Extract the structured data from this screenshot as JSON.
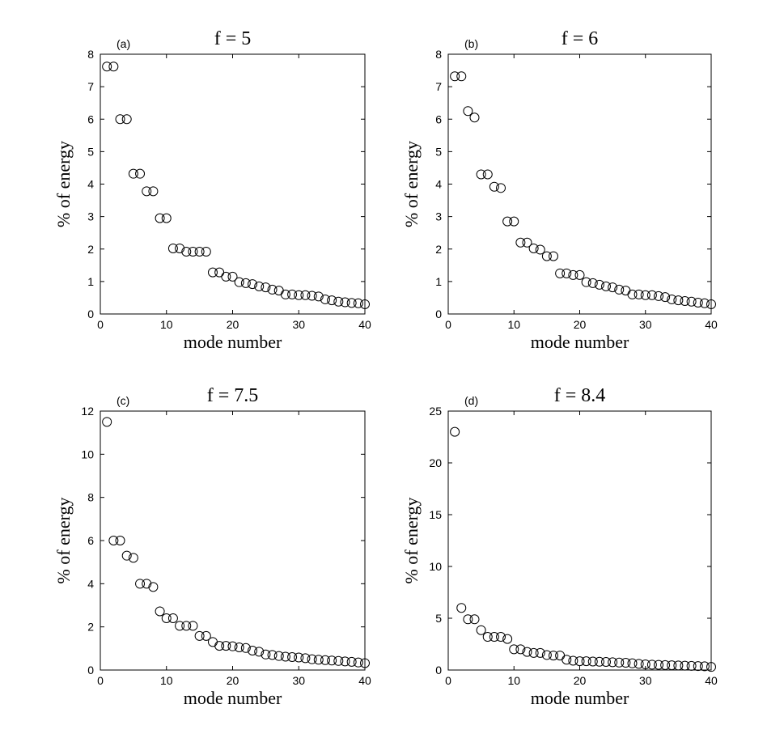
{
  "chart_data": [
    {
      "type": "scatter",
      "panel_label": "(a)",
      "title": "f = 5",
      "xlabel": "mode number",
      "ylabel": "% of energy",
      "xlim": [
        0,
        40
      ],
      "ylim": [
        0,
        8
      ],
      "xticks": [
        0,
        10,
        20,
        30,
        40
      ],
      "yticks": [
        0,
        1,
        2,
        3,
        4,
        5,
        6,
        7,
        8
      ],
      "grid": false,
      "marker": "open-circle",
      "x": [
        1,
        2,
        3,
        4,
        5,
        6,
        7,
        8,
        9,
        10,
        11,
        12,
        13,
        14,
        15,
        16,
        17,
        18,
        19,
        20,
        21,
        22,
        23,
        24,
        25,
        26,
        27,
        28,
        29,
        30,
        31,
        32,
        33,
        34,
        35,
        36,
        37,
        38,
        39,
        40
      ],
      "y": [
        7.62,
        7.62,
        6.0,
        6.0,
        4.32,
        4.32,
        3.78,
        3.78,
        2.95,
        2.95,
        2.02,
        2.02,
        1.92,
        1.92,
        1.92,
        1.92,
        1.28,
        1.28,
        1.15,
        1.15,
        0.98,
        0.95,
        0.92,
        0.85,
        0.82,
        0.75,
        0.72,
        0.6,
        0.6,
        0.58,
        0.58,
        0.56,
        0.54,
        0.45,
        0.42,
        0.38,
        0.36,
        0.34,
        0.33,
        0.3
      ]
    },
    {
      "type": "scatter",
      "panel_label": "(b)",
      "title": "f = 6",
      "xlabel": "mode number",
      "ylabel": "% of energy",
      "xlim": [
        0,
        40
      ],
      "ylim": [
        0,
        8
      ],
      "xticks": [
        0,
        10,
        20,
        30,
        40
      ],
      "yticks": [
        0,
        1,
        2,
        3,
        4,
        5,
        6,
        7,
        8
      ],
      "grid": false,
      "marker": "open-circle",
      "x": [
        1,
        2,
        3,
        4,
        5,
        6,
        7,
        8,
        9,
        10,
        11,
        12,
        13,
        14,
        15,
        16,
        17,
        18,
        19,
        20,
        21,
        22,
        23,
        24,
        25,
        26,
        27,
        28,
        29,
        30,
        31,
        32,
        33,
        34,
        35,
        36,
        37,
        38,
        39,
        40
      ],
      "y": [
        7.32,
        7.32,
        6.25,
        6.05,
        4.3,
        4.3,
        3.92,
        3.88,
        2.85,
        2.85,
        2.2,
        2.2,
        2.02,
        1.98,
        1.78,
        1.78,
        1.25,
        1.25,
        1.2,
        1.2,
        0.98,
        0.95,
        0.9,
        0.85,
        0.82,
        0.75,
        0.72,
        0.6,
        0.6,
        0.58,
        0.58,
        0.55,
        0.52,
        0.45,
        0.42,
        0.4,
        0.38,
        0.35,
        0.33,
        0.3
      ]
    },
    {
      "type": "scatter",
      "panel_label": "(c)",
      "title": "f = 7.5",
      "xlabel": "mode number",
      "ylabel": "% of energy",
      "xlim": [
        0,
        40
      ],
      "ylim": [
        0,
        12
      ],
      "xticks": [
        0,
        10,
        20,
        30,
        40
      ],
      "yticks": [
        0,
        2,
        4,
        6,
        8,
        10,
        12
      ],
      "grid": false,
      "marker": "open-circle",
      "x": [
        1,
        2,
        3,
        4,
        5,
        6,
        7,
        8,
        9,
        10,
        11,
        12,
        13,
        14,
        15,
        16,
        17,
        18,
        19,
        20,
        21,
        22,
        23,
        24,
        25,
        26,
        27,
        28,
        29,
        30,
        31,
        32,
        33,
        34,
        35,
        36,
        37,
        38,
        39,
        40
      ],
      "y": [
        11.5,
        6.0,
        6.0,
        5.3,
        5.2,
        4.0,
        4.0,
        3.85,
        2.72,
        2.4,
        2.4,
        2.05,
        2.05,
        2.05,
        1.58,
        1.58,
        1.3,
        1.12,
        1.12,
        1.1,
        1.05,
        1.02,
        0.9,
        0.85,
        0.72,
        0.7,
        0.65,
        0.62,
        0.6,
        0.58,
        0.55,
        0.5,
        0.48,
        0.46,
        0.44,
        0.42,
        0.4,
        0.38,
        0.35,
        0.32
      ]
    },
    {
      "type": "scatter",
      "panel_label": "(d)",
      "title": "f = 8.4",
      "xlabel": "mode number",
      "ylabel": "% of energy",
      "xlim": [
        0,
        40
      ],
      "ylim": [
        0,
        25
      ],
      "xticks": [
        0,
        10,
        20,
        30,
        40
      ],
      "yticks": [
        0,
        5,
        10,
        15,
        20,
        25
      ],
      "grid": false,
      "marker": "open-circle",
      "x": [
        1,
        2,
        3,
        4,
        5,
        6,
        7,
        8,
        9,
        10,
        11,
        12,
        13,
        14,
        15,
        16,
        17,
        18,
        19,
        20,
        21,
        22,
        23,
        24,
        25,
        26,
        27,
        28,
        29,
        30,
        31,
        32,
        33,
        34,
        35,
        36,
        37,
        38,
        39,
        40
      ],
      "y": [
        23.0,
        6.0,
        4.9,
        4.9,
        3.85,
        3.2,
        3.2,
        3.2,
        3.0,
        2.0,
        2.0,
        1.75,
        1.65,
        1.65,
        1.45,
        1.4,
        1.4,
        1.0,
        0.9,
        0.85,
        0.85,
        0.82,
        0.8,
        0.78,
        0.75,
        0.72,
        0.7,
        0.65,
        0.6,
        0.55,
        0.52,
        0.5,
        0.48,
        0.46,
        0.44,
        0.42,
        0.4,
        0.38,
        0.36,
        0.3
      ]
    }
  ]
}
